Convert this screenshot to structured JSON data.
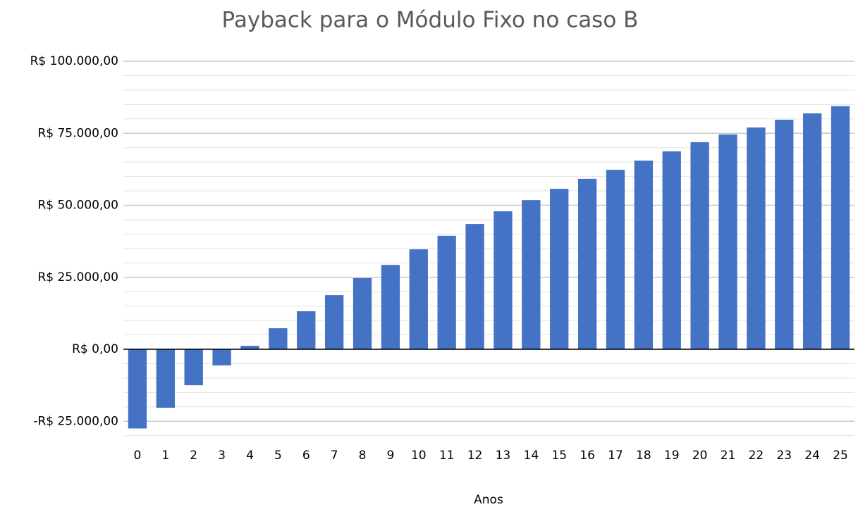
{
  "chart_data": {
    "type": "bar",
    "title": "Payback para o Módulo Fixo no caso B",
    "x_label": "Anos",
    "categories": [
      "0",
      "1",
      "2",
      "3",
      "4",
      "5",
      "6",
      "7",
      "8",
      "9",
      "10",
      "11",
      "12",
      "13",
      "14",
      "15",
      "16",
      "17",
      "18",
      "19",
      "20",
      "21",
      "22",
      "23",
      "24",
      "25"
    ],
    "values": [
      -27500,
      -20300,
      -12500,
      -5600,
      1200,
      7300,
      13200,
      18800,
      24700,
      29300,
      34700,
      39400,
      43500,
      47900,
      51800,
      55700,
      59200,
      62300,
      65500,
      68700,
      71900,
      74600,
      77000,
      79700,
      81900,
      84400
    ],
    "color": "#4472c4",
    "ylim": [
      -30000,
      100000
    ],
    "yticks": [
      {
        "value": -25000,
        "label": "-R$ 25.000,00"
      },
      {
        "value": 0,
        "label": "R$ 0,00"
      },
      {
        "value": 25000,
        "label": "R$ 25.000,00"
      },
      {
        "value": 50000,
        "label": "R$ 50.000,00"
      },
      {
        "value": 75000,
        "label": "R$ 75.000,00"
      },
      {
        "value": 100000,
        "label": "R$ 100.000,00"
      }
    ],
    "minor_yticks": [
      -30000,
      -25000,
      -20000,
      -15000,
      -10000,
      -5000,
      0,
      5000,
      10000,
      15000,
      20000,
      25000,
      30000,
      35000,
      40000,
      45000,
      50000,
      55000,
      60000,
      65000,
      70000,
      75000,
      80000,
      85000,
      90000,
      95000,
      100000
    ],
    "grid": true
  }
}
